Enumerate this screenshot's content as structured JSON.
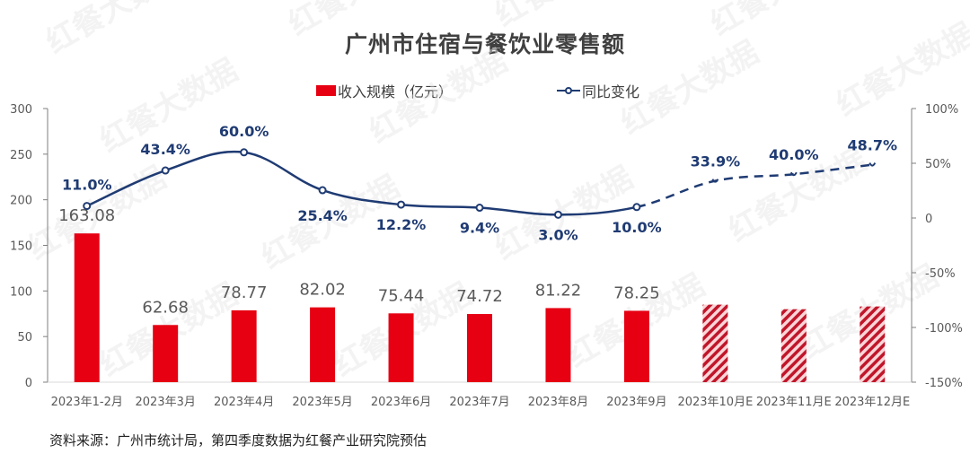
{
  "title": "广州市住宿与餐饮业零售额",
  "legend": {
    "bar_label": "收入规模（亿元）",
    "line_label": "同比变化"
  },
  "source": "资料来源：广州市统计局，第四季度数据为红餐产业研究院预估",
  "watermark": "红餐大数据",
  "colors": {
    "bar": "#e60012",
    "bar_estimate_stripe": "#c0162a",
    "bar_estimate_bg": "#fbd5d8",
    "line": "#1f3b73",
    "axis": "#7f7f7f",
    "text": "#595959"
  },
  "chart_data": {
    "type": "bar+line",
    "title": "广州市住宿与餐饮业零售额",
    "categories": [
      "2023年1-2月",
      "2023年3月",
      "2023年4月",
      "2023年5月",
      "2023年6月",
      "2023年7月",
      "2023年8月",
      "2023年9月",
      "2023年10月E",
      "2023年11月E",
      "2023年12月E"
    ],
    "series": [
      {
        "name": "收入规模（亿元）",
        "type": "bar",
        "axis": "left",
        "values": [
          163.08,
          62.68,
          78.77,
          82.02,
          75.44,
          74.72,
          81.22,
          78.25,
          85,
          80,
          83
        ],
        "labels": [
          "163.08",
          "62.68",
          "78.77",
          "82.02",
          "75.44",
          "74.72",
          "81.22",
          "78.25",
          "",
          "",
          ""
        ],
        "estimated": [
          false,
          false,
          false,
          false,
          false,
          false,
          false,
          false,
          true,
          true,
          true
        ]
      },
      {
        "name": "同比变化",
        "type": "line",
        "axis": "right",
        "values": [
          11.0,
          43.4,
          60.0,
          25.4,
          12.2,
          9.4,
          3.0,
          10.0,
          33.9,
          40.0,
          48.7
        ],
        "labels": [
          "11.0%",
          "43.4%",
          "60.0%",
          "25.4%",
          "12.2%",
          "9.4%",
          "3.0%",
          "10.0%",
          "33.9%",
          "40.0%",
          "48.7%"
        ],
        "estimated": [
          false,
          false,
          false,
          false,
          false,
          false,
          false,
          false,
          true,
          true,
          true
        ]
      }
    ],
    "left_axis": {
      "ylim": [
        0,
        300
      ],
      "ticks": [
        "0",
        "50",
        "100",
        "150",
        "200",
        "250",
        "300"
      ]
    },
    "right_axis": {
      "ylim": [
        -150,
        100
      ],
      "ticks": [
        "-150%",
        "-100%",
        "-50%",
        "0",
        "50%",
        "100%"
      ]
    },
    "xlabel": "",
    "ylabel": "",
    "legend_position": "top",
    "grid": false
  }
}
